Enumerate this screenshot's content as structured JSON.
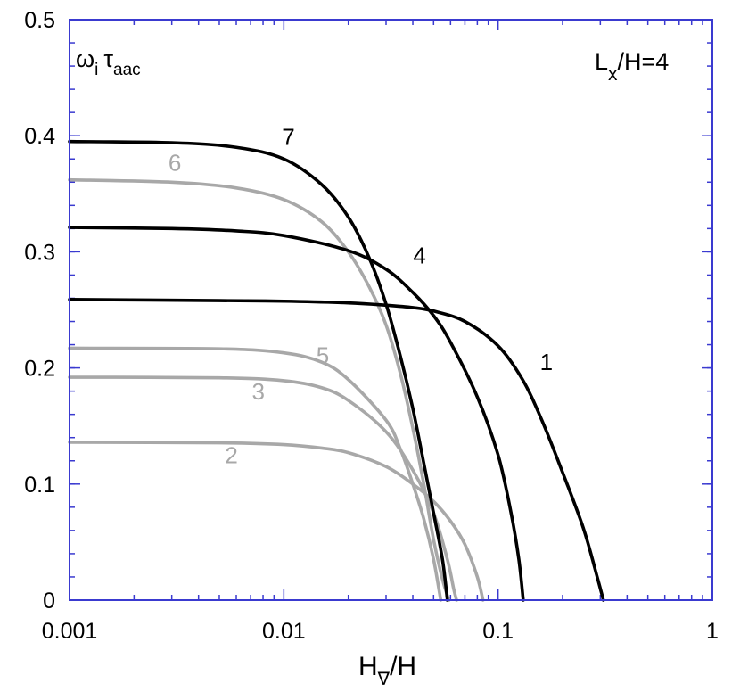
{
  "chart_data": {
    "type": "line",
    "x_scale": "log",
    "y_scale": "linear",
    "xlim": [
      0.001,
      1
    ],
    "ylim": [
      0,
      0.5
    ],
    "x_ticks": [
      {
        "value": 0.001,
        "label": "0.001"
      },
      {
        "value": 0.01,
        "label": "0.01"
      },
      {
        "value": 0.1,
        "label": "0.1"
      },
      {
        "value": 1,
        "label": "1"
      }
    ],
    "y_ticks": [
      {
        "value": 0,
        "label": "0"
      },
      {
        "value": 0.1,
        "label": "0.1"
      },
      {
        "value": 0.2,
        "label": "0.2"
      },
      {
        "value": 0.3,
        "label": "0.3"
      },
      {
        "value": 0.4,
        "label": "0.4"
      },
      {
        "value": 0.5,
        "label": "0.5"
      }
    ],
    "xlabel": {
      "main": "H",
      "sub": "∇",
      "rest": "/H"
    },
    "ylabel": {
      "omega": "ω",
      "omega_sub": "i",
      "tau": "τ",
      "tau_sub": "aac"
    },
    "annotation": {
      "main": "L",
      "sub": "x",
      "rest": "/H=4"
    },
    "grid": false,
    "colors": {
      "axis": "#3a3ad0",
      "black": "#000000",
      "gray": "#a8a8a8"
    },
    "series": [
      {
        "label": "1",
        "color": "#000000",
        "label_at": [
          0.168,
          0.198
        ],
        "points": [
          [
            0.001,
            0.259
          ],
          [
            0.005,
            0.258
          ],
          [
            0.01,
            0.2575
          ],
          [
            0.02,
            0.256
          ],
          [
            0.03,
            0.254
          ],
          [
            0.04,
            0.252
          ],
          [
            0.05,
            0.249
          ],
          [
            0.07,
            0.24
          ],
          [
            0.1,
            0.219
          ],
          [
            0.13,
            0.19
          ],
          [
            0.16,
            0.155
          ],
          [
            0.2,
            0.11
          ],
          [
            0.25,
            0.062
          ],
          [
            0.29,
            0.02
          ],
          [
            0.31,
            0.0
          ]
        ]
      },
      {
        "label": "2",
        "color": "#a8a8a8",
        "label_at": [
          0.0057,
          0.118
        ],
        "points": [
          [
            0.001,
            0.136
          ],
          [
            0.005,
            0.1355
          ],
          [
            0.01,
            0.134
          ],
          [
            0.015,
            0.131
          ],
          [
            0.02,
            0.127
          ],
          [
            0.03,
            0.115
          ],
          [
            0.04,
            0.1
          ],
          [
            0.05,
            0.085
          ],
          [
            0.06,
            0.068
          ],
          [
            0.07,
            0.048
          ],
          [
            0.08,
            0.02
          ],
          [
            0.085,
            0.0
          ]
        ]
      },
      {
        "label": "3",
        "color": "#a8a8a8",
        "label_at": [
          0.0076,
          0.173
        ],
        "points": [
          [
            0.001,
            0.192
          ],
          [
            0.005,
            0.1915
          ],
          [
            0.01,
            0.189
          ],
          [
            0.015,
            0.183
          ],
          [
            0.02,
            0.172
          ],
          [
            0.03,
            0.145
          ],
          [
            0.04,
            0.112
          ],
          [
            0.05,
            0.075
          ],
          [
            0.058,
            0.035
          ],
          [
            0.062,
            0.01
          ],
          [
            0.064,
            0.0
          ]
        ]
      },
      {
        "label": "4",
        "color": "#000000",
        "label_at": [
          0.043,
          0.29
        ],
        "points": [
          [
            0.001,
            0.321
          ],
          [
            0.003,
            0.32
          ],
          [
            0.006,
            0.318
          ],
          [
            0.01,
            0.314
          ],
          [
            0.02,
            0.301
          ],
          [
            0.03,
            0.285
          ],
          [
            0.04,
            0.265
          ],
          [
            0.05,
            0.245
          ],
          [
            0.06,
            0.222
          ],
          [
            0.08,
            0.175
          ],
          [
            0.1,
            0.125
          ],
          [
            0.115,
            0.075
          ],
          [
            0.125,
            0.035
          ],
          [
            0.131,
            0.0
          ]
        ]
      },
      {
        "label": "5",
        "color": "#a8a8a8",
        "label_at": [
          0.0152,
          0.204
        ],
        "points": [
          [
            0.001,
            0.217
          ],
          [
            0.005,
            0.2165
          ],
          [
            0.01,
            0.213
          ],
          [
            0.015,
            0.205
          ],
          [
            0.02,
            0.19
          ],
          [
            0.03,
            0.155
          ],
          [
            0.035,
            0.13
          ],
          [
            0.04,
            0.1
          ],
          [
            0.045,
            0.07
          ],
          [
            0.05,
            0.035
          ],
          [
            0.054,
            0.0
          ]
        ]
      },
      {
        "label": "6",
        "color": "#a8a8a8",
        "label_at": [
          0.0031,
          0.37
        ],
        "points": [
          [
            0.001,
            0.362
          ],
          [
            0.003,
            0.36
          ],
          [
            0.006,
            0.355
          ],
          [
            0.01,
            0.345
          ],
          [
            0.015,
            0.326
          ],
          [
            0.02,
            0.3
          ],
          [
            0.025,
            0.27
          ],
          [
            0.03,
            0.237
          ],
          [
            0.035,
            0.195
          ],
          [
            0.04,
            0.148
          ],
          [
            0.045,
            0.1
          ],
          [
            0.05,
            0.052
          ],
          [
            0.055,
            0.018
          ],
          [
            0.059,
            0.0
          ]
        ]
      },
      {
        "label": "7",
        "color": "#000000",
        "label_at": [
          0.0105,
          0.392
        ],
        "points": [
          [
            0.001,
            0.395
          ],
          [
            0.003,
            0.394
          ],
          [
            0.006,
            0.39
          ],
          [
            0.01,
            0.38
          ],
          [
            0.015,
            0.358
          ],
          [
            0.02,
            0.33
          ],
          [
            0.025,
            0.295
          ],
          [
            0.03,
            0.255
          ],
          [
            0.035,
            0.21
          ],
          [
            0.04,
            0.165
          ],
          [
            0.045,
            0.118
          ],
          [
            0.05,
            0.075
          ],
          [
            0.055,
            0.035
          ],
          [
            0.058,
            0.0
          ]
        ]
      }
    ]
  }
}
